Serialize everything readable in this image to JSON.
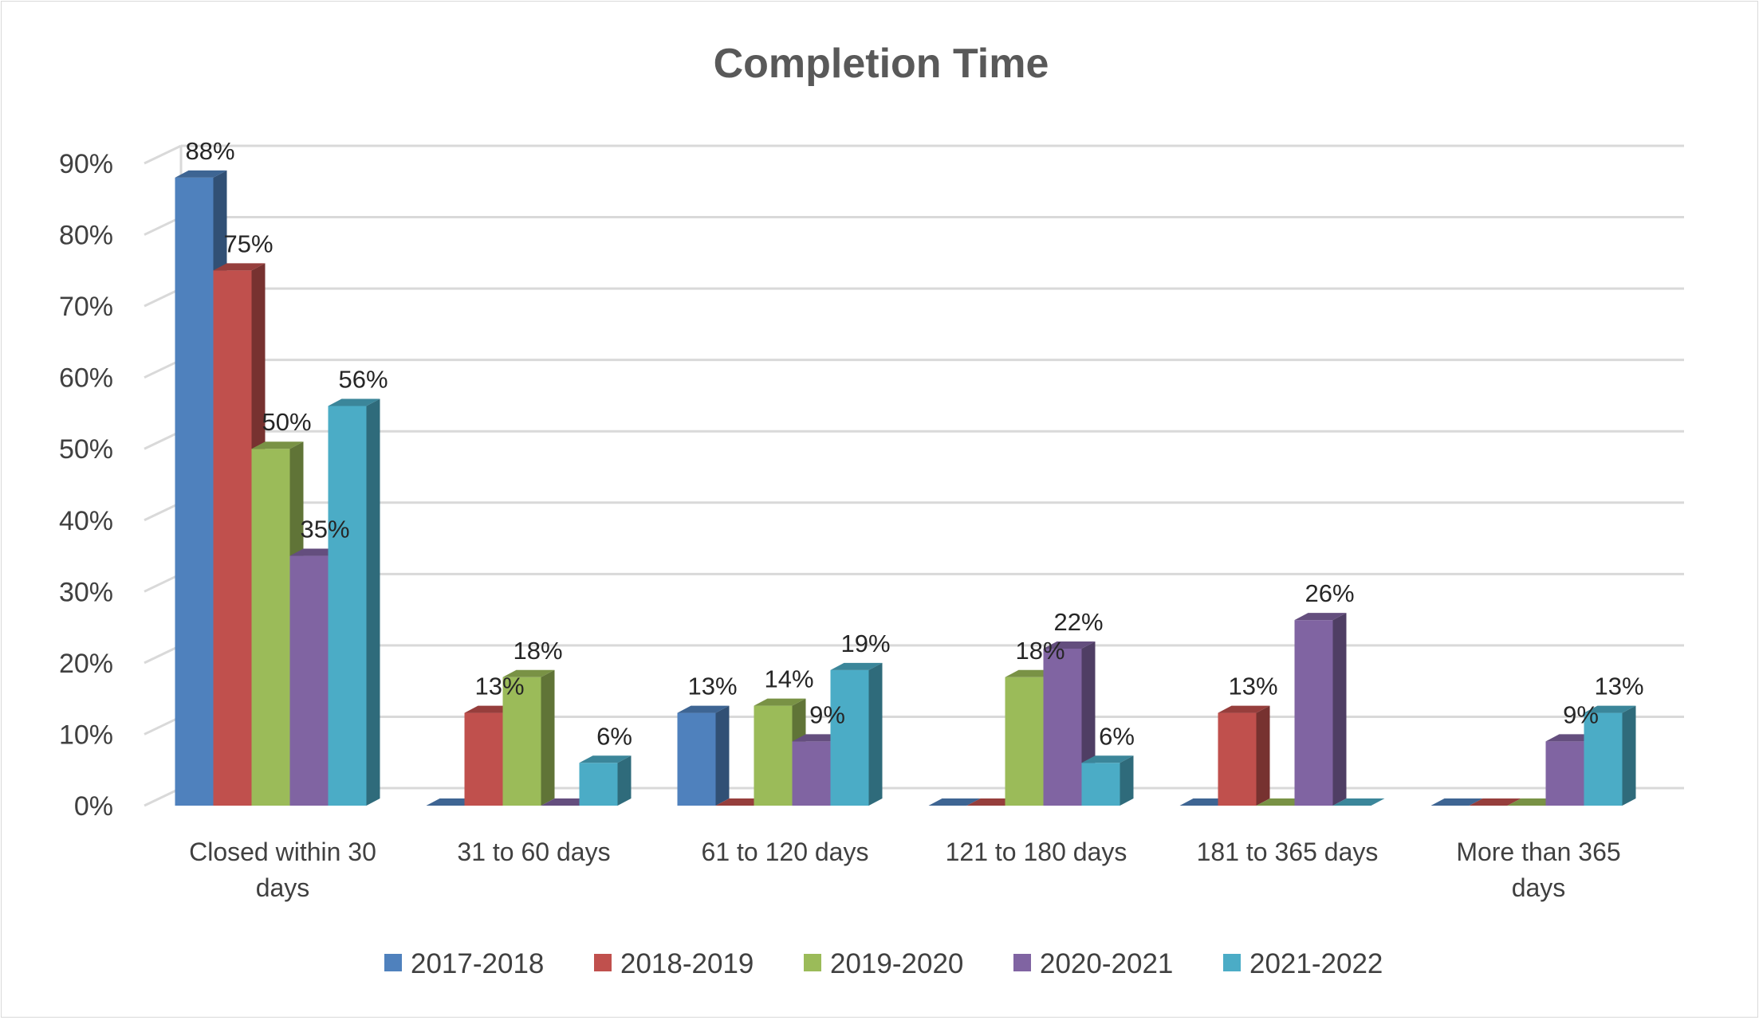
{
  "chart_data": {
    "type": "bar",
    "title": "Completion Time",
    "xlabel": "",
    "ylabel": "",
    "ylim": [
      0,
      90
    ],
    "yticks": [
      "0%",
      "10%",
      "20%",
      "30%",
      "40%",
      "50%",
      "60%",
      "70%",
      "80%",
      "90%"
    ],
    "grid": true,
    "legend_position": "bottom",
    "categories": [
      [
        "Closed within 30",
        "days"
      ],
      [
        "31 to 60 days"
      ],
      [
        "61 to 120 days"
      ],
      [
        "121 to 180 days"
      ],
      [
        "181 to 365 days"
      ],
      [
        "More than 365",
        "days"
      ]
    ],
    "series": [
      {
        "name": "2017-2018",
        "color": "#4f81bd",
        "values": [
          88,
          0,
          13,
          0,
          0,
          0
        ],
        "labels": [
          "88%",
          "",
          "13%",
          "",
          "",
          ""
        ]
      },
      {
        "name": "2018-2019",
        "color": "#c0504d",
        "values": [
          75,
          13,
          0,
          0,
          13,
          0
        ],
        "labels": [
          "75%",
          "13%",
          "",
          "",
          "13%",
          ""
        ]
      },
      {
        "name": "2019-2020",
        "color": "#9bbb59",
        "values": [
          50,
          18,
          14,
          18,
          0,
          0
        ],
        "labels": [
          "50%",
          "18%",
          "14%",
          "18%",
          "",
          ""
        ]
      },
      {
        "name": "2020-2021",
        "color": "#8064a2",
        "values": [
          35,
          0,
          9,
          22,
          26,
          9
        ],
        "labels": [
          "35%",
          "",
          "9%",
          "22%",
          "26%",
          "9%"
        ]
      },
      {
        "name": "2021-2022",
        "color": "#4bacc6",
        "values": [
          56,
          6,
          19,
          6,
          0,
          13
        ],
        "labels": [
          "56%",
          "6%",
          "19%",
          "6%",
          "",
          "13%"
        ]
      }
    ]
  }
}
